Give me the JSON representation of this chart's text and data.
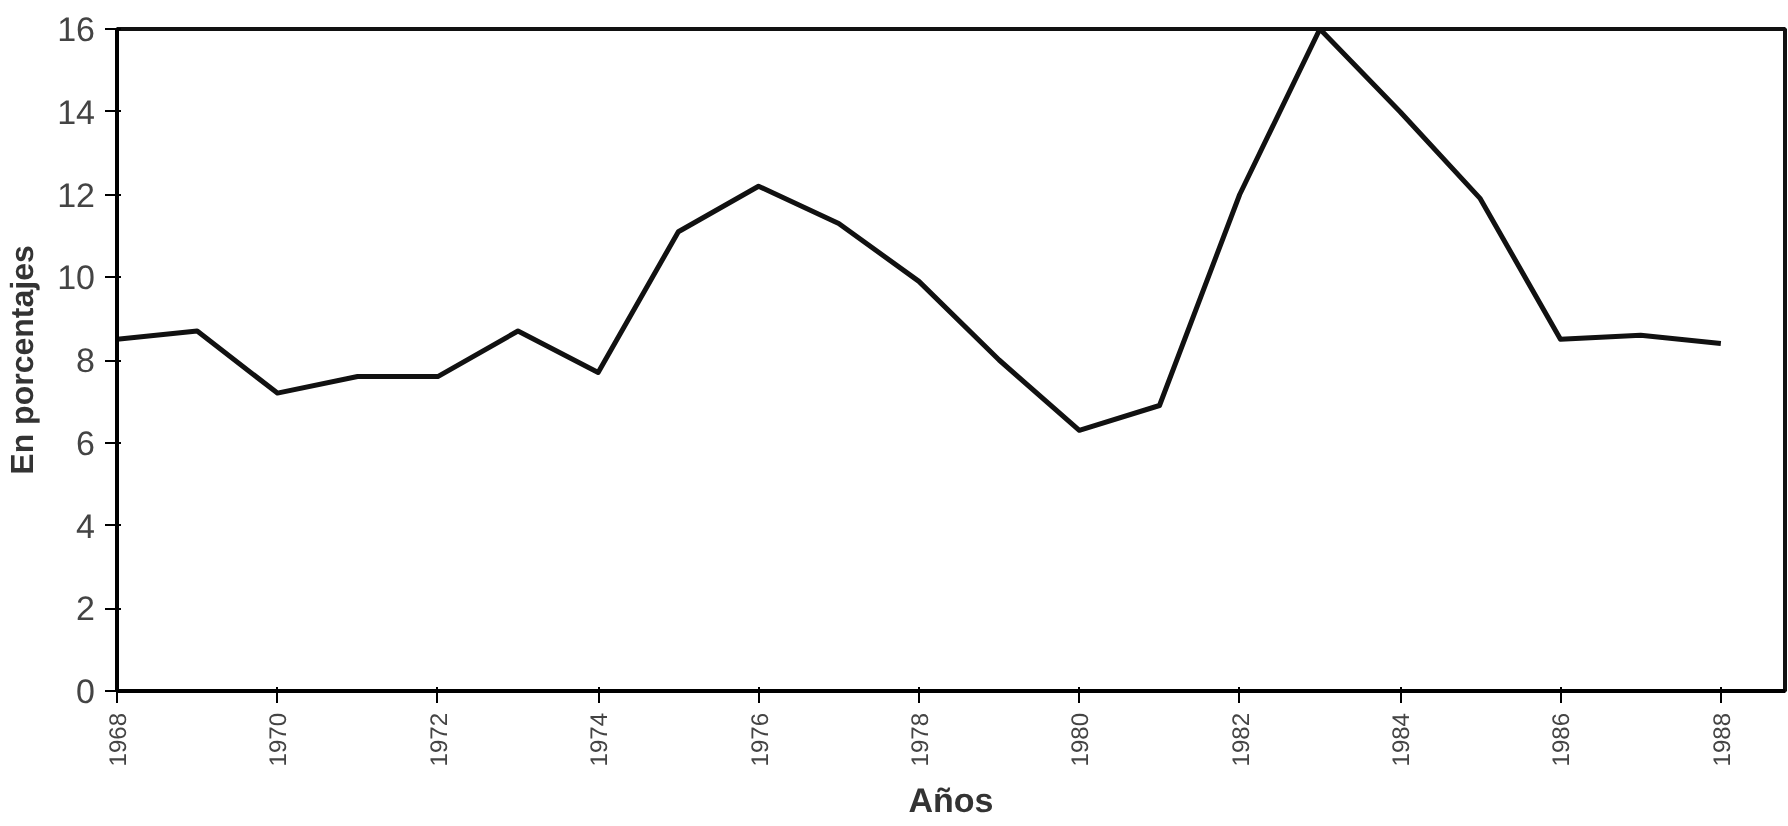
{
  "chart_data": {
    "type": "line",
    "xlabel": "Años",
    "ylabel": "En porcentajes",
    "x": [
      1968,
      1969,
      1970,
      1971,
      1972,
      1973,
      1974,
      1975,
      1976,
      1977,
      1978,
      1979,
      1980,
      1981,
      1982,
      1983,
      1984,
      1985,
      1986,
      1987,
      1988
    ],
    "series": [
      {
        "color": "#111111",
        "values": [
          8.5,
          8.7,
          7.2,
          7.6,
          7.6,
          8.7,
          7.7,
          11.1,
          12.2,
          11.3,
          9.9,
          8.0,
          6.3,
          6.9,
          12.0,
          16.0,
          14.0,
          11.9,
          8.5,
          8.6,
          8.4
        ]
      }
    ],
    "xlim": [
      1968,
      1988.8
    ],
    "ylim": [
      0,
      16
    ],
    "xticks": [
      1968,
      1970,
      1972,
      1974,
      1976,
      1978,
      1980,
      1982,
      1984,
      1986,
      1988
    ],
    "yticks": [
      0,
      2,
      4,
      6,
      8,
      10,
      12,
      14,
      16
    ],
    "grid": false,
    "marker": "none",
    "line_style": "solid"
  }
}
